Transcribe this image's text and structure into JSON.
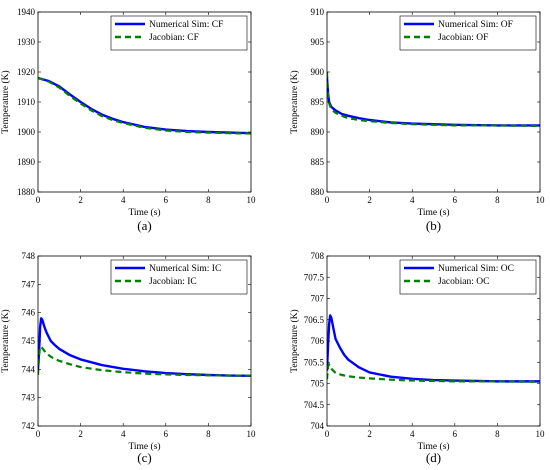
{
  "colors": {
    "numerical": "#0000ff",
    "jacobian": "#008000"
  },
  "chart_data": [
    {
      "type": "line",
      "caption": "(a)",
      "xlabel": "Time (s)",
      "ylabel": "Temperature (K)",
      "xlim": [
        0,
        10
      ],
      "ylim": [
        1880,
        1940
      ],
      "xticks": [
        0,
        2,
        4,
        6,
        8,
        10
      ],
      "yticks": [
        1880,
        1890,
        1900,
        1910,
        1920,
        1930,
        1940
      ],
      "legend_position": "top-right",
      "series": [
        {
          "name": "Numerical Sim: CF",
          "style": "solid",
          "x": [
            0,
            0.5,
            1,
            1.5,
            2,
            2.5,
            3,
            3.5,
            4,
            5,
            6,
            7,
            8,
            9,
            10
          ],
          "y": [
            1918,
            1917,
            1915.2,
            1912.5,
            1910,
            1907.7,
            1905.8,
            1904.4,
            1903.3,
            1901.7,
            1900.8,
            1900.3,
            1900.0,
            1899.8,
            1899.6
          ]
        },
        {
          "name": "Jacobian: CF",
          "style": "dashed",
          "x": [
            0,
            0.5,
            1,
            1.5,
            2,
            2.5,
            3,
            3.5,
            4,
            5,
            6,
            7,
            8,
            9,
            10
          ],
          "y": [
            1918,
            1916.8,
            1914.8,
            1912.0,
            1909.5,
            1907.2,
            1905.3,
            1904.0,
            1903.0,
            1901.4,
            1900.5,
            1900.0,
            1899.8,
            1899.6,
            1899.5
          ]
        }
      ]
    },
    {
      "type": "line",
      "caption": "(b)",
      "xlabel": "Time (s)",
      "ylabel": "Temperature (K)",
      "xlim": [
        0,
        10
      ],
      "ylim": [
        880,
        910
      ],
      "xticks": [
        0,
        2,
        4,
        6,
        8,
        10
      ],
      "yticks": [
        880,
        885,
        890,
        895,
        900,
        905,
        910
      ],
      "legend_position": "top-right",
      "series": [
        {
          "name": "Numerical Sim: OF",
          "style": "solid",
          "x": [
            0,
            0.05,
            0.1,
            0.2,
            0.4,
            0.7,
            1,
            1.5,
            2,
            3,
            4,
            5,
            6,
            8,
            10
          ],
          "y": [
            899.0,
            896.5,
            895.0,
            894.2,
            893.6,
            893.0,
            892.7,
            892.3,
            892.0,
            891.6,
            891.4,
            891.3,
            891.2,
            891.1,
            891.1
          ]
        },
        {
          "name": "Jacobian: OF",
          "style": "dashed",
          "x": [
            0,
            0.05,
            0.1,
            0.2,
            0.4,
            0.7,
            1,
            1.5,
            2,
            3,
            4,
            5,
            6,
            8,
            10
          ],
          "y": [
            900.0,
            896.0,
            894.8,
            893.8,
            893.2,
            892.7,
            892.3,
            892.0,
            891.8,
            891.5,
            891.3,
            891.2,
            891.1,
            891.1,
            891.0
          ]
        }
      ]
    },
    {
      "type": "line",
      "caption": "(c)",
      "xlabel": "Time (s)",
      "ylabel": "Temperature (K)",
      "xlim": [
        0,
        10
      ],
      "ylim": [
        742,
        748
      ],
      "xticks": [
        0,
        2,
        4,
        6,
        8,
        10
      ],
      "yticks": [
        742,
        743,
        744,
        745,
        746,
        747,
        748
      ],
      "legend_position": "top-right",
      "series": [
        {
          "name": "Numerical Sim: IC",
          "style": "solid",
          "x": [
            0,
            0.05,
            0.1,
            0.15,
            0.2,
            0.3,
            0.4,
            0.6,
            0.8,
            1,
            1.5,
            2,
            3,
            4,
            5,
            6,
            7,
            8,
            9,
            10
          ],
          "y": [
            744.0,
            744.6,
            745.5,
            745.8,
            745.75,
            745.5,
            745.3,
            745.0,
            744.85,
            744.72,
            744.5,
            744.35,
            744.15,
            744.02,
            743.93,
            743.87,
            743.83,
            743.8,
            743.78,
            743.77
          ]
        },
        {
          "name": "Jacobian: IC",
          "style": "dashed",
          "x": [
            0,
            0.05,
            0.1,
            0.2,
            0.4,
            0.7,
            1,
            1.5,
            2,
            3,
            4,
            5,
            6,
            7,
            8,
            9,
            10
          ],
          "y": [
            743.8,
            744.5,
            744.8,
            744.75,
            744.55,
            744.4,
            744.3,
            744.18,
            744.08,
            743.97,
            743.9,
            743.85,
            743.82,
            743.8,
            743.79,
            743.78,
            743.78
          ]
        }
      ]
    },
    {
      "type": "line",
      "caption": "(d)",
      "xlabel": "Time (s)",
      "ylabel": "Temperature (K)",
      "xlim": [
        0,
        10
      ],
      "ylim": [
        704,
        708
      ],
      "xticks": [
        0,
        2,
        4,
        6,
        8,
        10
      ],
      "yticks": [
        704,
        704.5,
        705,
        705.5,
        706,
        706.5,
        707,
        707.5,
        708
      ],
      "legend_position": "top-right",
      "series": [
        {
          "name": "Numerical Sim: OC",
          "style": "solid",
          "x": [
            0,
            0.05,
            0.1,
            0.15,
            0.2,
            0.3,
            0.4,
            0.6,
            0.8,
            1,
            1.5,
            2,
            3,
            4,
            5,
            6,
            7,
            8,
            9,
            10
          ],
          "y": [
            705.3,
            705.9,
            706.4,
            706.6,
            706.55,
            706.3,
            706.05,
            705.85,
            705.68,
            705.56,
            705.38,
            705.26,
            705.16,
            705.11,
            705.08,
            705.07,
            705.06,
            705.05,
            705.05,
            705.05
          ]
        },
        {
          "name": "Jacobian: OC",
          "style": "dashed",
          "x": [
            0,
            0.05,
            0.1,
            0.2,
            0.4,
            0.7,
            1,
            1.5,
            2,
            3,
            4,
            5,
            6,
            8,
            10
          ],
          "y": [
            705.1,
            705.4,
            705.45,
            705.35,
            705.25,
            705.2,
            705.17,
            705.14,
            705.12,
            705.09,
            705.07,
            705.06,
            705.05,
            705.05,
            705.04
          ]
        }
      ]
    }
  ]
}
